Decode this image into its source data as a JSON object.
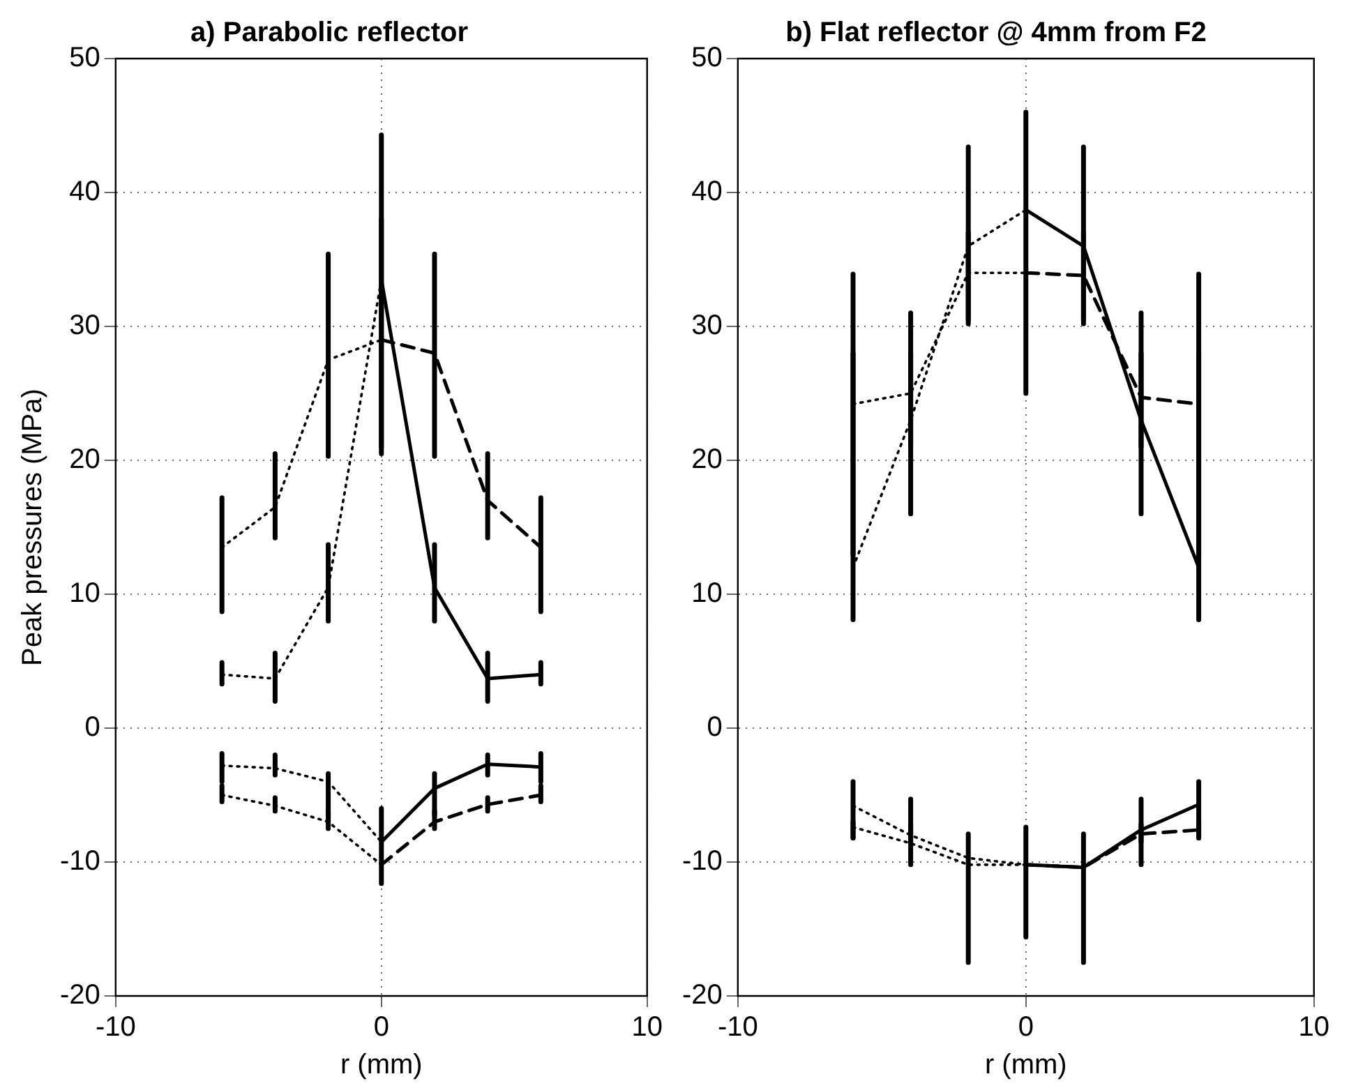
{
  "chart_data": [
    {
      "type": "line",
      "title": "a) Parabolic reflector",
      "xlabel": "r (mm)",
      "ylabel": "Peak pressures (MPa)",
      "xlim": [
        -10,
        10
      ],
      "xticks": [
        -10,
        0,
        10
      ],
      "ylim": [
        -20,
        50
      ],
      "yticks": [
        -20,
        -10,
        0,
        10,
        20,
        30,
        40,
        50
      ],
      "grid": true,
      "marker": "none",
      "legend": false,
      "series": [
        {
          "color": "#000000",
          "line_style": "solid",
          "x": [
            0,
            2,
            4,
            6
          ],
          "values": [
            33.5,
            10.5,
            3.7,
            4
          ],
          "errors": [
            [
              20.5,
              44.3
            ],
            [
              8,
              13.7
            ],
            [
              2,
              5.6
            ],
            [
              3.3,
              4.9
            ]
          ]
        },
        {
          "color": "#000000",
          "line_style": "dashed",
          "x": [
            0,
            2,
            4,
            6
          ],
          "values": [
            29,
            28,
            17,
            13.5
          ],
          "errors": [
            [
              21,
              38
            ],
            [
              20.3,
              35.4
            ],
            [
              14.2,
              20.5
            ],
            [
              8.7,
              17.2
            ]
          ]
        },
        {
          "color": "#000000",
          "line_style": "dotted",
          "x": [
            -6,
            -4,
            -2,
            0
          ],
          "values": [
            13.5,
            16.5,
            27.5,
            29
          ],
          "errors": [
            [
              8.7,
              17.2
            ],
            [
              14.2,
              20.5
            ],
            [
              20.3,
              35.4
            ],
            null
          ]
        },
        {
          "color": "#000000",
          "line_style": "dotted",
          "x": [
            -6,
            -4,
            -2,
            0
          ],
          "values": [
            4,
            3.7,
            10.5,
            33.5
          ],
          "errors": [
            [
              3.3,
              4.9
            ],
            [
              2,
              5.6
            ],
            [
              8,
              13.7
            ],
            null
          ]
        },
        {
          "color": "#000000",
          "line_style": "solid",
          "x": [
            0,
            2,
            4,
            6
          ],
          "values": [
            -8.5,
            -4.5,
            -2.7,
            -2.9
          ],
          "errors": [
            [
              -11.6,
              -6
            ],
            [
              -6.5,
              -3.4
            ],
            [
              -3.5,
              -2
            ],
            [
              -4,
              -1.9
            ]
          ]
        },
        {
          "color": "#000000",
          "line_style": "dashed",
          "x": [
            0,
            2,
            4,
            6
          ],
          "values": [
            -10.2,
            -7,
            -5.7,
            -5
          ],
          "errors": [
            null,
            [
              -7.5,
              -6.2
            ],
            [
              -6.2,
              -5.2
            ],
            [
              -5.5,
              -4.3
            ]
          ]
        },
        {
          "color": "#000000",
          "line_style": "dotted",
          "x": [
            -6,
            -4,
            -2,
            0
          ],
          "values": [
            -2.8,
            -3,
            -4,
            -8.5
          ],
          "errors": [
            [
              -4,
              -1.9
            ],
            [
              -3.5,
              -2
            ],
            [
              -6.5,
              -3.4
            ],
            null
          ]
        },
        {
          "color": "#000000",
          "line_style": "dotted",
          "x": [
            -6,
            -4,
            -2,
            0
          ],
          "values": [
            -5,
            -5.8,
            -7,
            -10.2
          ],
          "errors": [
            [
              -5.5,
              -4.3
            ],
            [
              -6.2,
              -5.2
            ],
            [
              -7.5,
              -6.2
            ],
            null
          ]
        }
      ]
    },
    {
      "type": "line",
      "title": "b) Flat reflector @ 4mm from F2",
      "xlabel": "r (mm)",
      "xlim": [
        -10,
        10
      ],
      "xticks": [
        -10,
        0,
        10
      ],
      "ylim": [
        -20,
        50
      ],
      "yticks": [
        -20,
        -10,
        0,
        10,
        20,
        30,
        40,
        50
      ],
      "grid": true,
      "marker": "none",
      "legend": false,
      "series": [
        {
          "color": "#000000",
          "line_style": "solid",
          "x": [
            0,
            2,
            4,
            6
          ],
          "values": [
            38.7,
            36,
            23,
            12
          ],
          "errors": [
            [
              25,
              46
            ],
            [
              30.2,
              43.4
            ],
            [
              16,
              31
            ],
            [
              8.1,
              33.9
            ]
          ]
        },
        {
          "color": "#000000",
          "line_style": "dashed",
          "x": [
            0,
            2,
            4,
            6
          ],
          "values": [
            34,
            33.8,
            24.7,
            24.2
          ],
          "errors": [
            null,
            [
              30.5,
              37
            ],
            [
              21,
              28
            ],
            [
              13,
              28
            ]
          ]
        },
        {
          "color": "#000000",
          "line_style": "dotted",
          "x": [
            -6,
            -4,
            -2,
            0
          ],
          "values": [
            24.2,
            25,
            34,
            34
          ],
          "errors": [
            [
              13,
              28
            ],
            [
              21,
              28
            ],
            [
              30.5,
              37
            ],
            null
          ]
        },
        {
          "color": "#000000",
          "line_style": "dotted",
          "x": [
            -6,
            -4,
            -2,
            0
          ],
          "values": [
            12,
            23,
            36,
            38.7
          ],
          "errors": [
            [
              8.1,
              33.9
            ],
            [
              16,
              31
            ],
            [
              30.2,
              43.4
            ],
            null
          ]
        },
        {
          "color": "#000000",
          "line_style": "solid",
          "x": [
            0,
            2,
            4,
            6
          ],
          "values": [
            -10.2,
            -10.4,
            -7.6,
            -5.7
          ],
          "errors": [
            [
              -15.6,
              -7.4
            ],
            [
              -17.5,
              -7.9
            ],
            [
              -10.2,
              -5.3
            ],
            [
              -8.2,
              -4
            ]
          ]
        },
        {
          "color": "#000000",
          "line_style": "dashed",
          "x": [
            0,
            2,
            4,
            6
          ],
          "values": [
            -10.2,
            -10.4,
            -7.9,
            -7.6
          ],
          "errors": [
            null,
            null,
            [
              -8.5,
              -7.2
            ],
            [
              -8.2,
              -7
            ]
          ]
        },
        {
          "color": "#000000",
          "line_style": "dotted",
          "x": [
            -6,
            -4,
            -2,
            0
          ],
          "values": [
            -5.8,
            -8,
            -9.7,
            -10.2
          ],
          "errors": [
            [
              -8.2,
              -4
            ],
            [
              -10.2,
              -5.3
            ],
            [
              -17.5,
              -7.9
            ],
            null
          ]
        },
        {
          "color": "#000000",
          "line_style": "dotted",
          "x": [
            -6,
            -4,
            -2,
            0
          ],
          "values": [
            -7.4,
            -8.6,
            -10.2,
            -10.2
          ],
          "errors": [
            [
              -8.2,
              -7
            ],
            [
              -8.5,
              -7.2
            ],
            null,
            null
          ]
        }
      ]
    }
  ]
}
